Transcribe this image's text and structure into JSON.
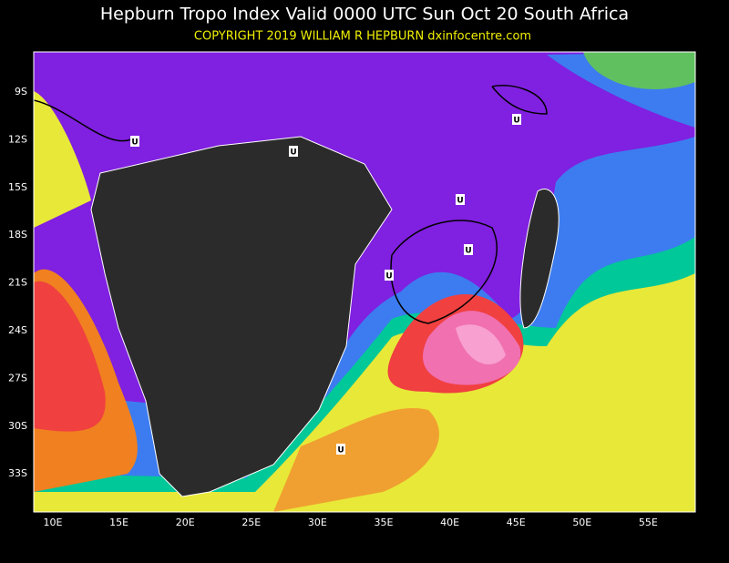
{
  "header": {
    "title": "Hepburn Tropo Index Valid 0000 UTC Sun Oct 20 South Africa",
    "copyright": "COPYRIGHT 2019  WILLIAM R HEPBURN  dxinfocentre.com"
  },
  "map": {
    "lat_labels": [
      "9S",
      "12S",
      "15S",
      "18S",
      "21S",
      "24S",
      "27S",
      "30S",
      "33S"
    ],
    "lon_labels": [
      "10E",
      "15E",
      "20E",
      "25E",
      "30E",
      "35E",
      "40E",
      "45E",
      "50E",
      "55E"
    ],
    "markers": [
      "U",
      "U",
      "U",
      "U",
      "U",
      "U",
      "U"
    ]
  }
}
